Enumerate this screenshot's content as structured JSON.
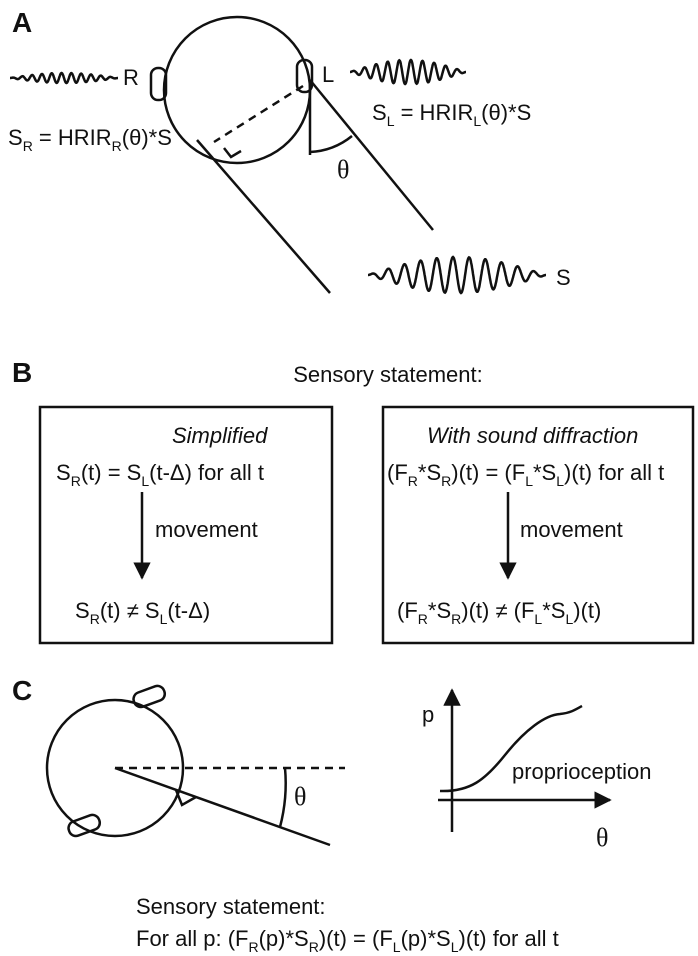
{
  "panel_a": {
    "label": "A",
    "right_label": "R",
    "left_label": "L",
    "right_equation": [
      "S",
      "R",
      " = HRIR",
      "R",
      "(θ)*S"
    ],
    "left_equation": [
      "S",
      "L",
      " = HRIR",
      "L",
      "(θ)*S"
    ],
    "angle": "θ",
    "source_label": "S"
  },
  "panel_b": {
    "label": "B",
    "title": "Sensory statement:",
    "simplified": {
      "heading": "Simplified",
      "before": [
        "S",
        "R",
        "(t) = S",
        "L",
        "(t-Δ) for all t"
      ],
      "arrow_label": "movement",
      "after": [
        "S",
        "R",
        "(t) ≠ S",
        "L",
        "(t-Δ)"
      ]
    },
    "diffraction": {
      "heading": "With sound diffraction",
      "before": [
        "(F",
        "R",
        "*S",
        "R",
        ")(t) = (F",
        "L",
        "*S",
        "L",
        ")(t) for all t"
      ],
      "arrow_label": "movement",
      "after": [
        "(F",
        "R",
        "*S",
        "R",
        ")(t) ≠ (F",
        "L",
        "*S",
        "L",
        ")(t)"
      ]
    }
  },
  "panel_c": {
    "label": "C",
    "angle": "θ",
    "graph": {
      "y_label": "p",
      "x_label": "θ",
      "curve_label": "proprioception"
    },
    "statement_title": "Sensory statement:",
    "statement": [
      "For all p: (F",
      "R",
      "(p)*S",
      "R",
      ")(t) = (F",
      "L",
      "(p)*S",
      "L",
      ")(t) for all t"
    ]
  }
}
